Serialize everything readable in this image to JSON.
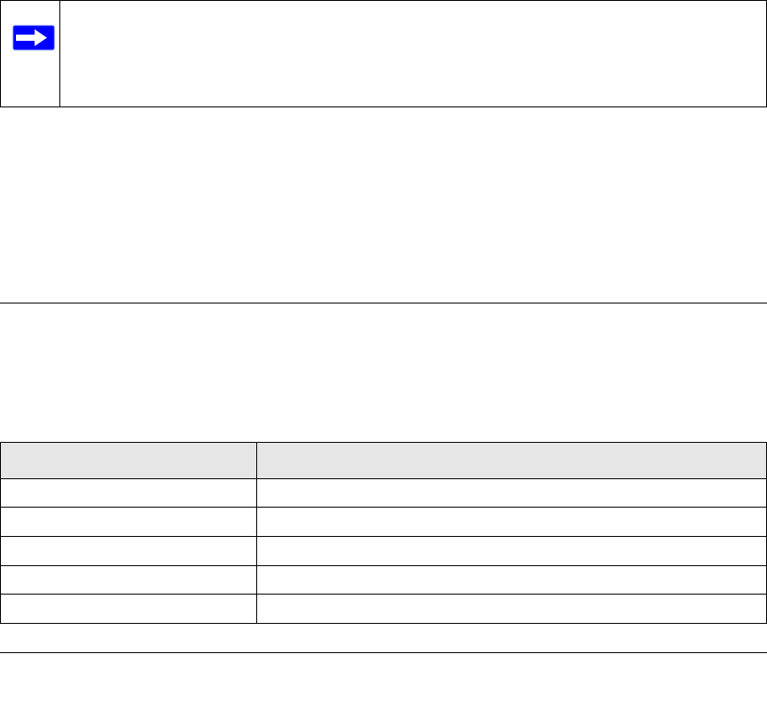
{
  "note": {
    "icon": "arrow-right-icon",
    "icon_color": "#0000ff",
    "text": ""
  },
  "table": {
    "header_bg": "#e6e6e6",
    "headers": [
      "",
      ""
    ],
    "rows": [
      [
        "",
        ""
      ],
      [
        "",
        ""
      ],
      [
        "",
        ""
      ],
      [
        "",
        ""
      ],
      [
        "",
        ""
      ]
    ]
  }
}
